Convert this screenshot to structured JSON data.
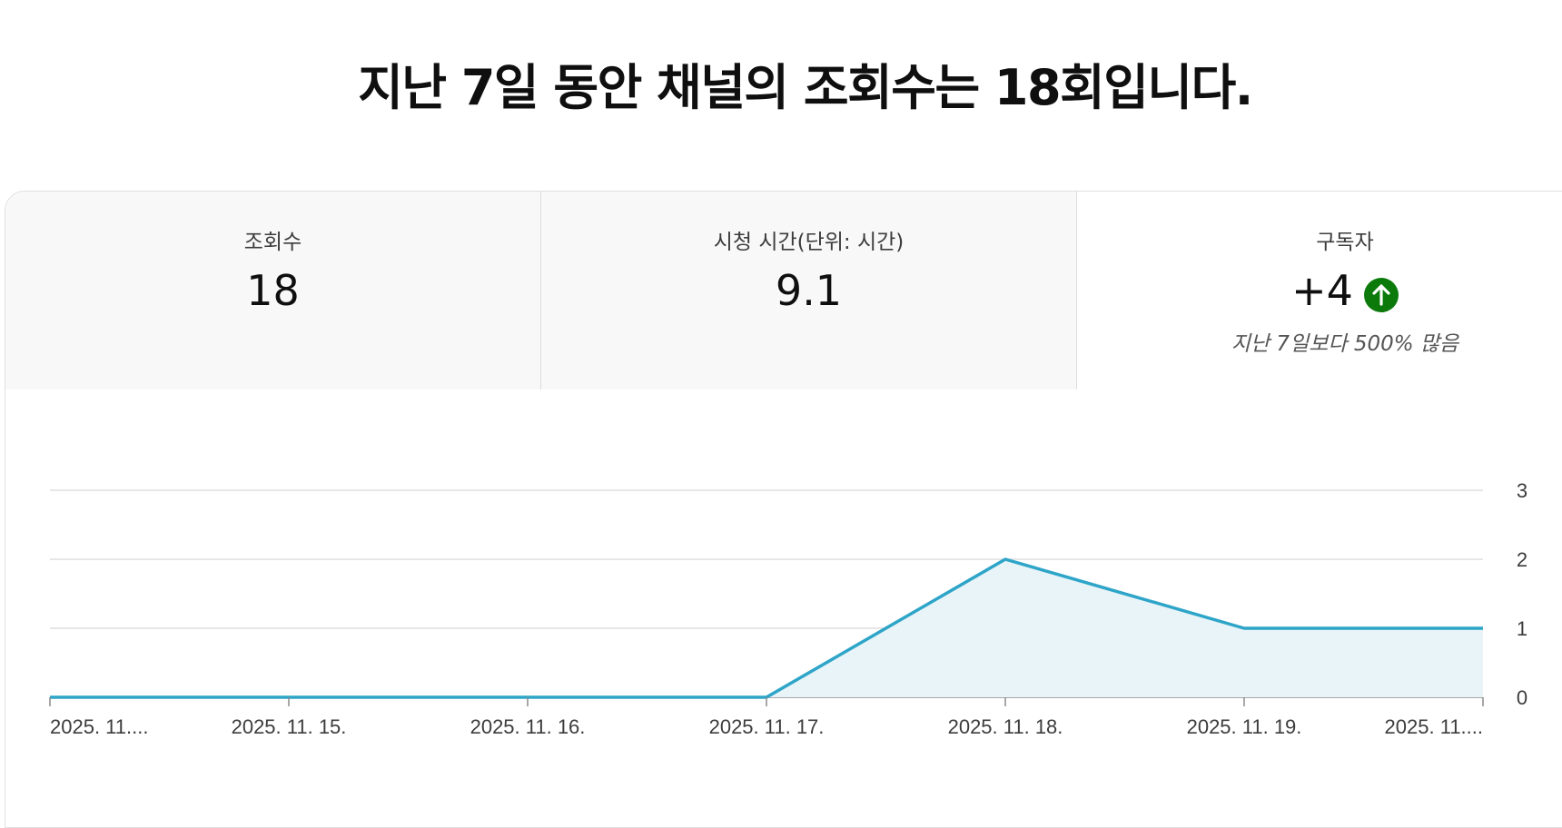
{
  "headline": "지난 7일 동안 채널의 조회수는 18회입니다.",
  "tabs": [
    {
      "label": "조회수",
      "value": "18",
      "note": ""
    },
    {
      "label": "시청 시간(단위: 시간)",
      "value": "9.1",
      "note": ""
    },
    {
      "label": "구독자",
      "value": "+4",
      "note": "지난 7일보다 500% 많음",
      "trend_icon": "arrow-up-circle-icon",
      "trend_color": "#0b7a0b"
    }
  ],
  "colors": {
    "line": "#2ea5c8",
    "fill": "#e8f4f8",
    "grid": "#dddddd",
    "axis": "#8a8a8a"
  },
  "chart_data": {
    "type": "area",
    "x": [
      "2025. 11....",
      "2025. 11. 15.",
      "2025. 11. 16.",
      "2025. 11. 17.",
      "2025. 11. 18.",
      "2025. 11. 19.",
      "2025. 11...."
    ],
    "series": [
      {
        "values": [
          0,
          0,
          0,
          0,
          2,
          1,
          1
        ]
      }
    ],
    "y_ticks": [
      0,
      1,
      2,
      3
    ],
    "ylim": [
      0,
      3
    ],
    "grid": true,
    "y_axis_side": "right"
  }
}
